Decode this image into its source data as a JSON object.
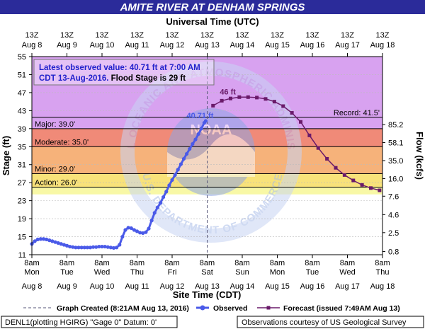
{
  "header": {
    "title": "AMITE RIVER AT DENHAM SPRINGS",
    "top_axis_title": "Universal Time (UTC)",
    "bottom_axis_title": "Site Time (CDT)"
  },
  "colors": {
    "title_bg": "#2b2b9a",
    "title_text": "#ffffff",
    "record_band": "#d8a2f0",
    "major_band": "#f08a78",
    "moderate_band": "#f6b27a",
    "minor_band": "#f8e27a",
    "action_band": "#f8f8a6",
    "observed": "#4a5ae8",
    "forecast": "#6a1a6a",
    "info_text": "#2222cc",
    "record_line": "#000000",
    "major_line": "#000000",
    "moderate_line": "#000000",
    "minor_line": "#000000",
    "action_line": "#000000"
  },
  "info_box": {
    "line1": "Latest observed value: 40.71 ft at 7:00 AM",
    "line2_blue": "CDT 13-Aug-2016.",
    "line2_black": " Flood Stage is 29 ft"
  },
  "watermark": {
    "arc_top": "NATIONAL OCEANIC AND ATMOSPHERIC ADMINISTRATION",
    "arc_bottom": "U.S. DEPARTMENT OF COMMERCE",
    "center": "NOAA"
  },
  "legend": {
    "created": "Graph Created (8:21AM Aug 13, 2016)",
    "observed": "Observed",
    "forecast": "Forecast (issued 7:49AM Aug 13)"
  },
  "footer": {
    "left": "DENL1(plotting HGIRG) \"Gage 0\" Datum: 0'",
    "right": "Observations courtesy of US Geological Survey"
  },
  "chart_data": {
    "type": "line",
    "title": "AMITE RIVER AT DENHAM SPRINGS",
    "ylabel": "Stage (ft)",
    "y2label": "Flow (kcfs)",
    "xlabel": "Site Time (CDT)",
    "x2label": "Universal Time (UTC)",
    "ylim": [
      11,
      55
    ],
    "xlim": [
      0,
      240
    ],
    "x_unit_note": "hours from 8am Mon Aug 8 (CDT)",
    "y_ticks": [
      11,
      15,
      19,
      23,
      27,
      31,
      35,
      39,
      43,
      47,
      51,
      55
    ],
    "y2_ticks": [
      {
        "stage": 11.7,
        "label": "0.8"
      },
      {
        "stage": 15.9,
        "label": "2.5"
      },
      {
        "stage": 19.9,
        "label": "4.6"
      },
      {
        "stage": 24.0,
        "label": "7.6"
      },
      {
        "stage": 27.9,
        "label": "16.0"
      },
      {
        "stage": 31.9,
        "label": "35.0"
      },
      {
        "stage": 35.9,
        "label": "58.1"
      },
      {
        "stage": 39.9,
        "label": "85.2"
      }
    ],
    "x_ticks_bottom": [
      {
        "x": 0,
        "line1": "8am",
        "line2": "Mon",
        "line3": "Aug 8"
      },
      {
        "x": 24,
        "line1": "8am",
        "line2": "Tue",
        "line3": "Aug 9"
      },
      {
        "x": 48,
        "line1": "8am",
        "line2": "Wed",
        "line3": "Aug 10"
      },
      {
        "x": 72,
        "line1": "8am",
        "line2": "Thu",
        "line3": "Aug 11"
      },
      {
        "x": 96,
        "line1": "8am",
        "line2": "Fri",
        "line3": "Aug 12"
      },
      {
        "x": 120,
        "line1": "8am",
        "line2": "Sat",
        "line3": "Aug 13"
      },
      {
        "x": 144,
        "line1": "8am",
        "line2": "Sun",
        "line3": "Aug 14"
      },
      {
        "x": 168,
        "line1": "8am",
        "line2": "Mon",
        "line3": "Aug 15"
      },
      {
        "x": 192,
        "line1": "8am",
        "line2": "Tue",
        "line3": "Aug 16"
      },
      {
        "x": 216,
        "line1": "8am",
        "line2": "Wed",
        "line3": "Aug 17"
      },
      {
        "x": 240,
        "line1": "8am",
        "line2": "Thu",
        "line3": "Aug 18"
      }
    ],
    "x_ticks_top": [
      {
        "x": 0,
        "line1": "13Z",
        "line2": "Aug 8"
      },
      {
        "x": 24,
        "line1": "13Z",
        "line2": "Aug 9"
      },
      {
        "x": 48,
        "line1": "13Z",
        "line2": "Aug 10"
      },
      {
        "x": 72,
        "line1": "13Z",
        "line2": "Aug 11"
      },
      {
        "x": 96,
        "line1": "13Z",
        "line2": "Aug 12"
      },
      {
        "x": 120,
        "line1": "13Z",
        "line2": "Aug 13"
      },
      {
        "x": 144,
        "line1": "13Z",
        "line2": "Aug 14"
      },
      {
        "x": 168,
        "line1": "13Z",
        "line2": "Aug 15"
      },
      {
        "x": 192,
        "line1": "13Z",
        "line2": "Aug 16"
      },
      {
        "x": 216,
        "line1": "13Z",
        "line2": "Aug 17"
      },
      {
        "x": 240,
        "line1": "13Z",
        "line2": "Aug 18"
      }
    ],
    "flood_categories": [
      {
        "name": "Record",
        "label": "Record: 41.5'",
        "stage": 41.5,
        "label_side": "right"
      },
      {
        "name": "Major",
        "label": "Major: 39.0'",
        "stage": 39.0,
        "label_side": "left"
      },
      {
        "name": "Moderate",
        "label": "Moderate: 35.0'",
        "stage": 35.0,
        "label_side": "left"
      },
      {
        "name": "Minor",
        "label": "Minor: 29.0'",
        "stage": 29.0,
        "label_side": "left"
      },
      {
        "name": "Action",
        "label": "Action: 26.0'",
        "stage": 26.0,
        "label_side": "left"
      }
    ],
    "graph_created_x": 120,
    "annotations": [
      {
        "text": "40.71 ft",
        "x": 119,
        "y": 40.71,
        "color": "observed"
      },
      {
        "text": "46 ft",
        "x": 138,
        "y": 46,
        "color": "forecast"
      }
    ],
    "series": [
      {
        "name": "Observed",
        "x": [
          0,
          2,
          4,
          6,
          8,
          10,
          12,
          14,
          16,
          18,
          20,
          22,
          24,
          26,
          28,
          30,
          32,
          34,
          36,
          38,
          40,
          42,
          44,
          46,
          48,
          50,
          52,
          54,
          56,
          58,
          60,
          62,
          64,
          66,
          68,
          70,
          72,
          74,
          76,
          78,
          80,
          82,
          84,
          86,
          88,
          90,
          92,
          94,
          96,
          98,
          100,
          102,
          104,
          106,
          108,
          110,
          112,
          114,
          116,
          118,
          119
        ],
        "y": [
          13.4,
          14.0,
          14.4,
          14.5,
          14.5,
          14.4,
          14.2,
          14.0,
          13.8,
          13.6,
          13.4,
          13.2,
          13.0,
          12.8,
          12.7,
          12.6,
          12.6,
          12.6,
          12.6,
          12.6,
          12.6,
          12.7,
          12.7,
          12.8,
          12.8,
          12.8,
          12.7,
          12.6,
          12.5,
          12.6,
          13.2,
          15.0,
          16.5,
          17.0,
          16.9,
          16.5,
          16.2,
          15.9,
          15.8,
          16.0,
          16.8,
          18.6,
          20.3,
          21.5,
          22.5,
          23.8,
          25.0,
          26.4,
          27.6,
          28.7,
          29.9,
          31.1,
          32.3,
          33.4,
          34.5,
          35.6,
          36.6,
          37.8,
          39.0,
          40.3,
          40.71
        ]
      },
      {
        "name": "Forecast",
        "x": [
          124,
          130,
          136,
          142,
          148,
          154,
          160,
          166,
          172,
          178,
          184,
          190,
          196,
          202,
          208,
          214,
          220,
          226,
          232,
          238
        ],
        "y": [
          44.1,
          45.2,
          45.7,
          46.0,
          46.0,
          45.9,
          45.6,
          45.0,
          44.0,
          42.5,
          40.5,
          37.5,
          34.7,
          32.3,
          30.3,
          28.7,
          27.5,
          26.5,
          25.8,
          25.3
        ]
      }
    ]
  }
}
